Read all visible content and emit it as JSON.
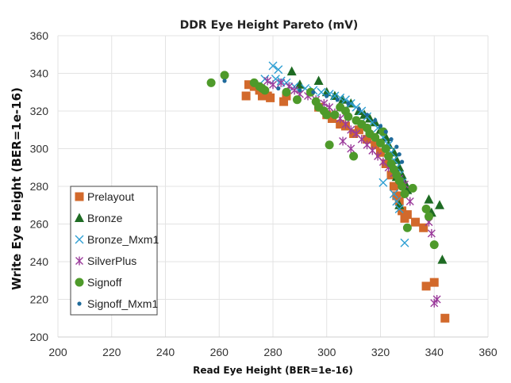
{
  "chart_data": {
    "type": "scatter",
    "title": "DDR Eye Height Pareto (mV)",
    "xlabel": "Read Eye Height (BER=1e-16)",
    "ylabel": "Write Eye Height (BER=1e-16)",
    "xlim": [
      200,
      360
    ],
    "ylim": [
      200,
      360
    ],
    "xticks": [
      200,
      220,
      240,
      260,
      280,
      300,
      320,
      340,
      360
    ],
    "yticks": [
      200,
      220,
      240,
      260,
      280,
      300,
      320,
      340,
      360
    ],
    "grid": true,
    "legend_position": "bottom-left",
    "series": [
      {
        "name": "Prelayout",
        "marker": "square",
        "color": "#D2692B",
        "points": [
          [
            270,
            328
          ],
          [
            271,
            334
          ],
          [
            273,
            333
          ],
          [
            275,
            331
          ],
          [
            276,
            328
          ],
          [
            278,
            328
          ],
          [
            279,
            327
          ],
          [
            284,
            325
          ],
          [
            285,
            328
          ],
          [
            297,
            322
          ],
          [
            300,
            318
          ],
          [
            302,
            316
          ],
          [
            305,
            313
          ],
          [
            307,
            312
          ],
          [
            310,
            308
          ],
          [
            312,
            310
          ],
          [
            315,
            305
          ],
          [
            318,
            302
          ],
          [
            320,
            298
          ],
          [
            322,
            292
          ],
          [
            324,
            286
          ],
          [
            325,
            280
          ],
          [
            326,
            275
          ],
          [
            327,
            272
          ],
          [
            328,
            267
          ],
          [
            329,
            263
          ],
          [
            330,
            265
          ],
          [
            333,
            261
          ],
          [
            336,
            258
          ],
          [
            337,
            227
          ],
          [
            340,
            229
          ],
          [
            344,
            210
          ]
        ]
      },
      {
        "name": "Bronze",
        "marker": "triangle",
        "color": "#1E6B23",
        "points": [
          [
            287,
            341
          ],
          [
            290,
            334
          ],
          [
            297,
            336
          ],
          [
            300,
            330
          ],
          [
            303,
            328
          ],
          [
            306,
            326
          ],
          [
            309,
            324
          ],
          [
            312,
            320
          ],
          [
            314,
            318
          ],
          [
            316,
            316
          ],
          [
            318,
            314
          ],
          [
            320,
            310
          ],
          [
            322,
            306
          ],
          [
            323,
            302
          ],
          [
            325,
            298
          ],
          [
            326,
            294
          ],
          [
            327,
            290
          ],
          [
            328,
            286
          ],
          [
            329,
            282
          ],
          [
            330,
            278
          ],
          [
            326,
            285
          ],
          [
            327,
            270
          ],
          [
            338,
            273
          ],
          [
            339,
            266
          ],
          [
            342,
            270
          ],
          [
            343,
            241
          ]
        ]
      },
      {
        "name": "Bronze_Mxm1",
        "marker": "x",
        "color": "#2E9FD3",
        "points": [
          [
            280,
            344
          ],
          [
            282,
            342
          ],
          [
            277,
            337
          ],
          [
            281,
            337
          ],
          [
            283,
            336
          ],
          [
            285,
            335
          ],
          [
            288,
            333
          ],
          [
            292,
            332
          ],
          [
            295,
            331
          ],
          [
            298,
            330
          ],
          [
            301,
            329
          ],
          [
            303,
            328
          ],
          [
            305,
            327
          ],
          [
            307,
            326
          ],
          [
            309,
            324
          ],
          [
            311,
            322
          ],
          [
            313,
            320
          ],
          [
            315,
            317
          ],
          [
            317,
            314
          ],
          [
            319,
            311
          ],
          [
            321,
            306
          ],
          [
            323,
            302
          ],
          [
            324,
            298
          ],
          [
            325,
            294
          ],
          [
            326,
            290
          ],
          [
            327,
            286
          ],
          [
            328,
            282
          ],
          [
            321,
            282
          ],
          [
            325,
            276
          ],
          [
            326,
            272
          ],
          [
            327,
            268
          ],
          [
            329,
            250
          ]
        ]
      },
      {
        "name": "SilverPlus",
        "marker": "asterisk",
        "color": "#9B3B9B",
        "points": [
          [
            278,
            336
          ],
          [
            280,
            334
          ],
          [
            283,
            335
          ],
          [
            286,
            333
          ],
          [
            288,
            331
          ],
          [
            290,
            329
          ],
          [
            293,
            328
          ],
          [
            296,
            326
          ],
          [
            299,
            324
          ],
          [
            301,
            322
          ],
          [
            303,
            319
          ],
          [
            305,
            316
          ],
          [
            307,
            313
          ],
          [
            309,
            310
          ],
          [
            311,
            308
          ],
          [
            313,
            305
          ],
          [
            315,
            302
          ],
          [
            317,
            299
          ],
          [
            319,
            296
          ],
          [
            321,
            293
          ],
          [
            323,
            290
          ],
          [
            325,
            287
          ],
          [
            327,
            284
          ],
          [
            329,
            281
          ],
          [
            306,
            304
          ],
          [
            309,
            300
          ],
          [
            331,
            272
          ],
          [
            338,
            261
          ],
          [
            339,
            255
          ],
          [
            340,
            218
          ],
          [
            341,
            220
          ]
        ]
      },
      {
        "name": "Signoff",
        "marker": "circle",
        "color": "#4E9A2A",
        "points": [
          [
            257,
            335
          ],
          [
            262,
            339
          ],
          [
            273,
            335
          ],
          [
            275,
            333
          ],
          [
            276,
            332
          ],
          [
            277,
            331
          ],
          [
            285,
            330
          ],
          [
            289,
            326
          ],
          [
            294,
            330
          ],
          [
            296,
            325
          ],
          [
            297,
            322
          ],
          [
            299,
            320
          ],
          [
            300,
            318
          ],
          [
            301,
            302
          ],
          [
            303,
            318
          ],
          [
            305,
            322
          ],
          [
            307,
            320
          ],
          [
            308,
            317
          ],
          [
            310,
            296
          ],
          [
            311,
            315
          ],
          [
            313,
            313
          ],
          [
            315,
            311
          ],
          [
            316,
            308
          ],
          [
            318,
            306
          ],
          [
            320,
            303
          ],
          [
            321,
            309
          ],
          [
            322,
            300
          ],
          [
            323,
            296
          ],
          [
            324,
            292
          ],
          [
            325,
            289
          ],
          [
            326,
            286
          ],
          [
            327,
            283
          ],
          [
            328,
            280
          ],
          [
            329,
            276
          ],
          [
            330,
            258
          ],
          [
            332,
            279
          ],
          [
            337,
            268
          ],
          [
            338,
            264
          ],
          [
            340,
            249
          ]
        ]
      },
      {
        "name": "Signoff_Mxm1",
        "marker": "dot",
        "color": "#1F6A9A",
        "points": [
          [
            262,
            336
          ],
          [
            282,
            332
          ],
          [
            290,
            331
          ],
          [
            295,
            330
          ],
          [
            300,
            328
          ],
          [
            304,
            326
          ],
          [
            308,
            324
          ],
          [
            312,
            321
          ],
          [
            315,
            318
          ],
          [
            318,
            315
          ],
          [
            320,
            312
          ],
          [
            322,
            309
          ],
          [
            324,
            305
          ],
          [
            326,
            301
          ],
          [
            327,
            297
          ],
          [
            328,
            293
          ]
        ]
      }
    ]
  }
}
